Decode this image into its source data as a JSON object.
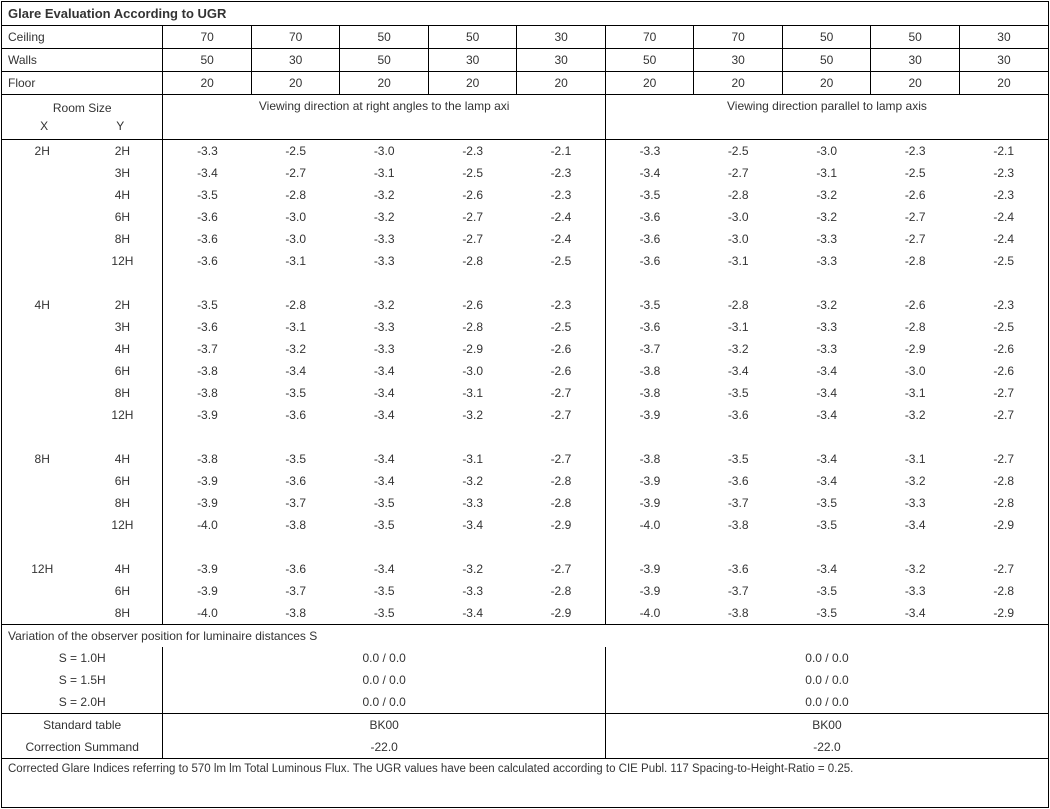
{
  "title": "Glare Evaluation According to UGR",
  "header_rows": [
    {
      "label": "Ceiling",
      "vals": [
        "70",
        "70",
        "50",
        "50",
        "30",
        "70",
        "70",
        "50",
        "50",
        "30"
      ]
    },
    {
      "label": "Walls",
      "vals": [
        "50",
        "30",
        "50",
        "30",
        "30",
        "50",
        "30",
        "50",
        "30",
        "30"
      ]
    },
    {
      "label": "Floor",
      "vals": [
        "20",
        "20",
        "20",
        "20",
        "20",
        "20",
        "20",
        "20",
        "20",
        "20"
      ]
    }
  ],
  "room_size_label": "Room Size",
  "x_label": "X",
  "y_label": "Y",
  "dir_left": "Viewing direction at right angles to the lamp axi",
  "dir_right": "Viewing direction parallel to lamp axis",
  "groups": [
    {
      "x": "2H",
      "rows": [
        {
          "y": "2H",
          "l": [
            "-3.3",
            "-2.5",
            "-3.0",
            "-2.3",
            "-2.1"
          ],
          "r": [
            "-3.3",
            "-2.5",
            "-3.0",
            "-2.3",
            "-2.1"
          ]
        },
        {
          "y": "3H",
          "l": [
            "-3.4",
            "-2.7",
            "-3.1",
            "-2.5",
            "-2.3"
          ],
          "r": [
            "-3.4",
            "-2.7",
            "-3.1",
            "-2.5",
            "-2.3"
          ]
        },
        {
          "y": "4H",
          "l": [
            "-3.5",
            "-2.8",
            "-3.2",
            "-2.6",
            "-2.3"
          ],
          "r": [
            "-3.5",
            "-2.8",
            "-3.2",
            "-2.6",
            "-2.3"
          ]
        },
        {
          "y": "6H",
          "l": [
            "-3.6",
            "-3.0",
            "-3.2",
            "-2.7",
            "-2.4"
          ],
          "r": [
            "-3.6",
            "-3.0",
            "-3.2",
            "-2.7",
            "-2.4"
          ]
        },
        {
          "y": "8H",
          "l": [
            "-3.6",
            "-3.0",
            "-3.3",
            "-2.7",
            "-2.4"
          ],
          "r": [
            "-3.6",
            "-3.0",
            "-3.3",
            "-2.7",
            "-2.4"
          ]
        },
        {
          "y": "12H",
          "l": [
            "-3.6",
            "-3.1",
            "-3.3",
            "-2.8",
            "-2.5"
          ],
          "r": [
            "-3.6",
            "-3.1",
            "-3.3",
            "-2.8",
            "-2.5"
          ]
        }
      ]
    },
    {
      "x": "4H",
      "rows": [
        {
          "y": "2H",
          "l": [
            "-3.5",
            "-2.8",
            "-3.2",
            "-2.6",
            "-2.3"
          ],
          "r": [
            "-3.5",
            "-2.8",
            "-3.2",
            "-2.6",
            "-2.3"
          ]
        },
        {
          "y": "3H",
          "l": [
            "-3.6",
            "-3.1",
            "-3.3",
            "-2.8",
            "-2.5"
          ],
          "r": [
            "-3.6",
            "-3.1",
            "-3.3",
            "-2.8",
            "-2.5"
          ]
        },
        {
          "y": "4H",
          "l": [
            "-3.7",
            "-3.2",
            "-3.3",
            "-2.9",
            "-2.6"
          ],
          "r": [
            "-3.7",
            "-3.2",
            "-3.3",
            "-2.9",
            "-2.6"
          ]
        },
        {
          "y": "6H",
          "l": [
            "-3.8",
            "-3.4",
            "-3.4",
            "-3.0",
            "-2.6"
          ],
          "r": [
            "-3.8",
            "-3.4",
            "-3.4",
            "-3.0",
            "-2.6"
          ]
        },
        {
          "y": "8H",
          "l": [
            "-3.8",
            "-3.5",
            "-3.4",
            "-3.1",
            "-2.7"
          ],
          "r": [
            "-3.8",
            "-3.5",
            "-3.4",
            "-3.1",
            "-2.7"
          ]
        },
        {
          "y": "12H",
          "l": [
            "-3.9",
            "-3.6",
            "-3.4",
            "-3.2",
            "-2.7"
          ],
          "r": [
            "-3.9",
            "-3.6",
            "-3.4",
            "-3.2",
            "-2.7"
          ]
        }
      ]
    },
    {
      "x": "8H",
      "rows": [
        {
          "y": "4H",
          "l": [
            "-3.8",
            "-3.5",
            "-3.4",
            "-3.1",
            "-2.7"
          ],
          "r": [
            "-3.8",
            "-3.5",
            "-3.4",
            "-3.1",
            "-2.7"
          ]
        },
        {
          "y": "6H",
          "l": [
            "-3.9",
            "-3.6",
            "-3.4",
            "-3.2",
            "-2.8"
          ],
          "r": [
            "-3.9",
            "-3.6",
            "-3.4",
            "-3.2",
            "-2.8"
          ]
        },
        {
          "y": "8H",
          "l": [
            "-3.9",
            "-3.7",
            "-3.5",
            "-3.3",
            "-2.8"
          ],
          "r": [
            "-3.9",
            "-3.7",
            "-3.5",
            "-3.3",
            "-2.8"
          ]
        },
        {
          "y": "12H",
          "l": [
            "-4.0",
            "-3.8",
            "-3.5",
            "-3.4",
            "-2.9"
          ],
          "r": [
            "-4.0",
            "-3.8",
            "-3.5",
            "-3.4",
            "-2.9"
          ]
        }
      ]
    },
    {
      "x": "12H",
      "rows": [
        {
          "y": "4H",
          "l": [
            "-3.9",
            "-3.6",
            "-3.4",
            "-3.2",
            "-2.7"
          ],
          "r": [
            "-3.9",
            "-3.6",
            "-3.4",
            "-3.2",
            "-2.7"
          ]
        },
        {
          "y": "6H",
          "l": [
            "-3.9",
            "-3.7",
            "-3.5",
            "-3.3",
            "-2.8"
          ],
          "r": [
            "-3.9",
            "-3.7",
            "-3.5",
            "-3.3",
            "-2.8"
          ]
        },
        {
          "y": "8H",
          "l": [
            "-4.0",
            "-3.8",
            "-3.5",
            "-3.4",
            "-2.9"
          ],
          "r": [
            "-4.0",
            "-3.8",
            "-3.5",
            "-3.4",
            "-2.9"
          ]
        }
      ]
    }
  ],
  "variation_title": "Variation of the observer position for luminaire distances S",
  "variation_rows": [
    {
      "label": "S = 1.0H",
      "l": "0.0 / 0.0",
      "r": "0.0 / 0.0"
    },
    {
      "label": "S = 1.5H",
      "l": "0.0 / 0.0",
      "r": "0.0 / 0.0"
    },
    {
      "label": "S = 2.0H",
      "l": "0.0 / 0.0",
      "r": "0.0 / 0.0"
    }
  ],
  "std_table_label": "Standard table",
  "std_table_l": "BK00",
  "std_table_r": "BK00",
  "corr_label": "Correction Summand",
  "corr_l": "-22.0",
  "corr_r": "-22.0",
  "footer": "Corrected Glare Indices referring to 570 lm lm Total Luminous Flux. The UGR values have been calculated according to CIE Publ. 117    Spacing-to-Height-Ratio = 0.25."
}
